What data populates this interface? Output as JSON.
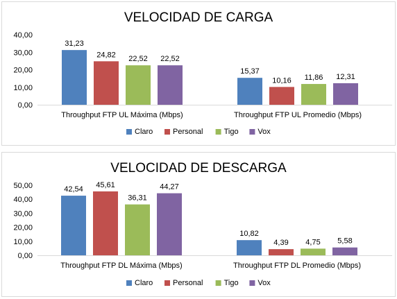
{
  "chart_data": [
    {
      "type": "bar",
      "title": "VELOCIDAD DE CARGA",
      "categories": [
        "Throughput FTP UL Máxima (Mbps)",
        "Throughput FTP UL Promedio (Mbps)"
      ],
      "series": [
        {
          "name": "Claro",
          "color": "#4f81bd",
          "values": [
            31.23,
            15.37
          ],
          "labels": [
            "31,23",
            "15,37"
          ]
        },
        {
          "name": "Personal",
          "color": "#c0504d",
          "values": [
            24.82,
            10.16
          ],
          "labels": [
            "24,82",
            "10,16"
          ]
        },
        {
          "name": "Tigo",
          "color": "#9bbb59",
          "values": [
            22.52,
            11.86
          ],
          "labels": [
            "22,52",
            "11,86"
          ]
        },
        {
          "name": "Vox",
          "color": "#8064a2",
          "values": [
            22.52,
            12.31
          ],
          "labels": [
            "22,52",
            "12,31"
          ]
        }
      ],
      "yticks": [
        "0,00",
        "10,00",
        "20,00",
        "30,00",
        "40,00"
      ],
      "ylim": [
        0,
        40
      ],
      "legend": "bottom",
      "grid": false
    },
    {
      "type": "bar",
      "title": "VELOCIDAD DE DESCARGA",
      "categories": [
        "Throughput FTP DL Máxima (Mbps)",
        "Throughput FTP DL Promedio (Mbps)"
      ],
      "series": [
        {
          "name": "Claro",
          "color": "#4f81bd",
          "values": [
            42.54,
            10.82
          ],
          "labels": [
            "42,54",
            "10,82"
          ]
        },
        {
          "name": "Personal",
          "color": "#c0504d",
          "values": [
            45.61,
            4.39
          ],
          "labels": [
            "45,61",
            "4,39"
          ]
        },
        {
          "name": "Tigo",
          "color": "#9bbb59",
          "values": [
            36.31,
            4.75
          ],
          "labels": [
            "36,31",
            "4,75"
          ]
        },
        {
          "name": "Vox",
          "color": "#8064a2",
          "values": [
            44.27,
            5.58
          ],
          "labels": [
            "44,27",
            "5,58"
          ]
        }
      ],
      "yticks": [
        "0,00",
        "10,00",
        "20,00",
        "30,00",
        "40,00",
        "50,00"
      ],
      "ylim": [
        0,
        50
      ],
      "legend": "bottom",
      "grid": false
    }
  ]
}
